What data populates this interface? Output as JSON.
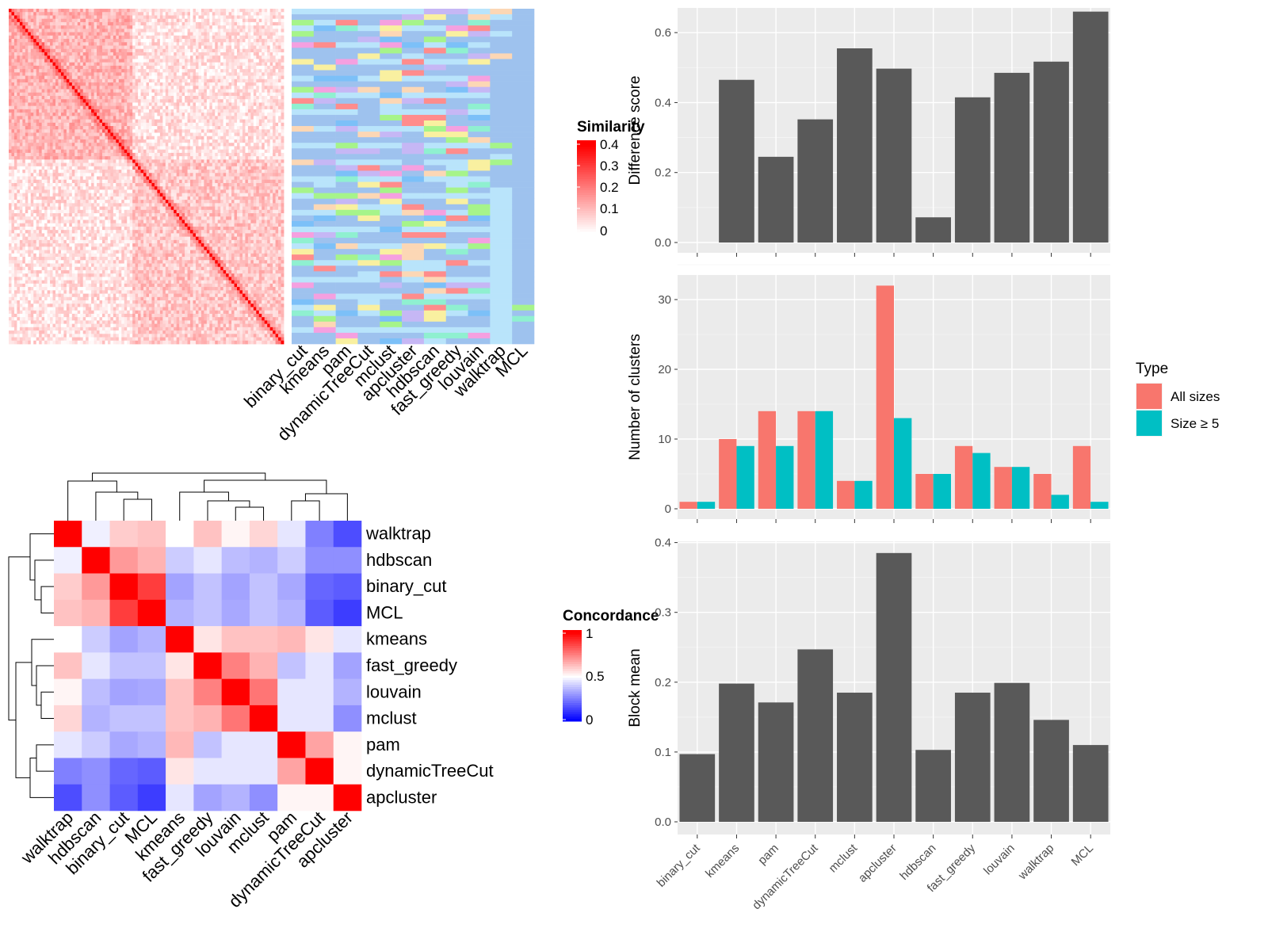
{
  "methods": [
    "binary_cut",
    "kmeans",
    "pam",
    "dynamicTreeCut",
    "mclust",
    "apcluster",
    "hdbscan",
    "fast_greedy",
    "louvain",
    "walktrap",
    "MCL"
  ],
  "similarity_legend": {
    "title": "Similarity",
    "ticks": [
      "0.4",
      "0.3",
      "0.2",
      "0.1",
      "0"
    ]
  },
  "concordance_legend": {
    "title": "Concordance",
    "ticks": [
      "1",
      "0.5",
      "0"
    ]
  },
  "chart_data": [
    {
      "type": "heatmap",
      "name": "similarity matrix",
      "legend_title": "Similarity",
      "scale": [
        0,
        0.4
      ],
      "colors": {
        "low": "#ffffff",
        "high": "#ff0000"
      },
      "n": 100
    },
    {
      "type": "heatmap",
      "name": "cluster assignments",
      "columns": [
        "binary_cut",
        "kmeans",
        "pam",
        "dynamicTreeCut",
        "mclust",
        "apcluster",
        "hdbscan",
        "fast_greedy",
        "louvain",
        "walktrap",
        "MCL"
      ]
    },
    {
      "type": "heatmap",
      "name": "concordance matrix",
      "legend_title": "Concordance",
      "scale": [
        0,
        1
      ],
      "colors": {
        "low": "#0000ff",
        "mid": "#ffffff",
        "high": "#ff0000"
      },
      "rows": [
        "walktrap",
        "hdbscan",
        "binary_cut",
        "MCL",
        "kmeans",
        "fast_greedy",
        "louvain",
        "mclust",
        "pam",
        "dynamicTreeCut",
        "apcluster"
      ],
      "cols": [
        "walktrap",
        "hdbscan",
        "binary_cut",
        "MCL",
        "kmeans",
        "fast_greedy",
        "louvain",
        "mclust",
        "pam",
        "dynamicTreeCut",
        "apcluster"
      ],
      "values": [
        [
          1.0,
          0.47,
          0.6,
          0.62,
          0.5,
          0.62,
          0.52,
          0.58,
          0.45,
          0.25,
          0.15
        ],
        [
          0.47,
          1.0,
          0.7,
          0.65,
          0.4,
          0.45,
          0.37,
          0.35,
          0.4,
          0.28,
          0.28
        ],
        [
          0.6,
          0.7,
          1.0,
          0.88,
          0.32,
          0.38,
          0.32,
          0.38,
          0.33,
          0.2,
          0.18
        ],
        [
          0.62,
          0.65,
          0.88,
          1.0,
          0.35,
          0.38,
          0.33,
          0.38,
          0.35,
          0.18,
          0.12
        ],
        [
          0.5,
          0.4,
          0.32,
          0.35,
          1.0,
          0.55,
          0.62,
          0.62,
          0.64,
          0.55,
          0.45
        ],
        [
          0.62,
          0.45,
          0.38,
          0.38,
          0.55,
          1.0,
          0.75,
          0.65,
          0.38,
          0.45,
          0.32
        ],
        [
          0.52,
          0.37,
          0.32,
          0.33,
          0.62,
          0.75,
          1.0,
          0.77,
          0.45,
          0.45,
          0.35
        ],
        [
          0.58,
          0.35,
          0.38,
          0.38,
          0.62,
          0.65,
          0.77,
          1.0,
          0.45,
          0.45,
          0.28
        ],
        [
          0.45,
          0.4,
          0.33,
          0.35,
          0.64,
          0.38,
          0.45,
          0.45,
          1.0,
          0.68,
          0.52
        ],
        [
          0.25,
          0.28,
          0.2,
          0.18,
          0.55,
          0.45,
          0.45,
          0.45,
          0.68,
          1.0,
          0.52
        ],
        [
          0.15,
          0.28,
          0.18,
          0.12,
          0.45,
          0.32,
          0.35,
          0.28,
          0.52,
          0.52,
          1.0
        ]
      ]
    },
    {
      "type": "bar",
      "categories": [
        "binary_cut",
        "kmeans",
        "pam",
        "dynamicTreeCut",
        "mclust",
        "apcluster",
        "hdbscan",
        "fast_greedy",
        "louvain",
        "walktrap",
        "MCL"
      ],
      "values": [
        0.0,
        0.465,
        0.245,
        0.352,
        0.555,
        0.497,
        0.072,
        0.415,
        0.485,
        0.517,
        0.66
      ],
      "ylabel": "Difference score",
      "ylim": [
        0,
        0.7
      ],
      "yticks": [
        0.0,
        0.2,
        0.4,
        0.6
      ],
      "ytick_labels": [
        "0.0",
        "0.2",
        "0.4",
        "0.6"
      ],
      "color": "#595959",
      "grid": true
    },
    {
      "type": "bar",
      "categories": [
        "binary_cut",
        "kmeans",
        "pam",
        "dynamicTreeCut",
        "mclust",
        "apcluster",
        "hdbscan",
        "fast_greedy",
        "louvain",
        "walktrap",
        "MCL"
      ],
      "series": [
        {
          "name": "All sizes",
          "values": [
            1,
            10,
            14,
            14,
            4,
            32,
            5,
            9,
            6,
            5,
            9
          ],
          "color": "#F8766D"
        },
        {
          "name": "Size ≥ 5",
          "values": [
            1,
            9,
            9,
            14,
            4,
            13,
            5,
            8,
            6,
            2,
            1
          ],
          "color": "#00BFC4"
        }
      ],
      "ylabel": "Number of clusters",
      "ylim": [
        0,
        35
      ],
      "yticks": [
        0,
        10,
        20,
        30
      ],
      "ytick_labels": [
        "0",
        "10",
        "20",
        "30"
      ],
      "legend_title": "Type",
      "legend_position": "right",
      "grid": true
    },
    {
      "type": "bar",
      "categories": [
        "binary_cut",
        "kmeans",
        "pam",
        "dynamicTreeCut",
        "mclust",
        "apcluster",
        "hdbscan",
        "fast_greedy",
        "louvain",
        "walktrap",
        "MCL"
      ],
      "values": [
        0.097,
        0.198,
        0.171,
        0.247,
        0.185,
        0.385,
        0.103,
        0.185,
        0.199,
        0.146,
        0.11
      ],
      "ylabel": "Block mean",
      "ylim": [
        0,
        0.42
      ],
      "yticks": [
        0.0,
        0.1,
        0.2,
        0.3,
        0.4
      ],
      "ytick_labels": [
        "0.0",
        "0.1",
        "0.2",
        "0.3",
        "0.4"
      ],
      "color": "#595959",
      "grid": true
    }
  ]
}
